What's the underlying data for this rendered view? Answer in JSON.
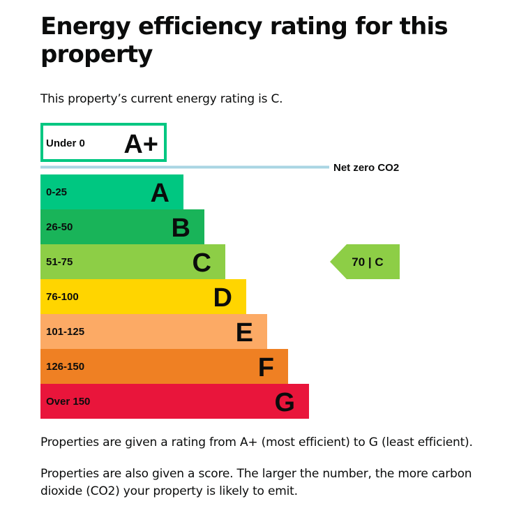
{
  "page": {
    "title": "Energy efficiency rating for this property",
    "current_rating_text": "This property’s current energy rating is C.",
    "explanation_1": "Properties are given a rating from A+ (most efficient) to G (least efficient).",
    "explanation_2": "Properties are also given a score. The larger the number, the more carbon dioxide (CO2) your property is likely to emit."
  },
  "chart_data": {
    "type": "bar",
    "title": "",
    "bands": [
      {
        "letter": "A+",
        "range": "Under 0",
        "color": "#00c781",
        "text_color": "#0b0c0c",
        "style": "outlined"
      },
      {
        "letter": "A",
        "range": "0-25",
        "color": "#00c781",
        "text_color": "#0b0c0c"
      },
      {
        "letter": "B",
        "range": "26-50",
        "color": "#19b459",
        "text_color": "#0b0c0c"
      },
      {
        "letter": "C",
        "range": "51-75",
        "color": "#8dce46",
        "text_color": "#0b0c0c"
      },
      {
        "letter": "D",
        "range": "76-100",
        "color": "#ffd500",
        "text_color": "#0b0c0c"
      },
      {
        "letter": "E",
        "range": "101-125",
        "color": "#fcaa65",
        "text_color": "#0b0c0c"
      },
      {
        "letter": "F",
        "range": "126-150",
        "color": "#ef8023",
        "text_color": "#0b0c0c"
      },
      {
        "letter": "G",
        "range": "Over 150",
        "color": "#e9153b",
        "text_color": "#0b0c0c"
      }
    ],
    "net_zero": {
      "label": "Net zero CO2",
      "color": "#a9d5e3"
    },
    "current": {
      "score": 70,
      "band": "C",
      "label": "70 | C",
      "color": "#8dce46"
    }
  }
}
